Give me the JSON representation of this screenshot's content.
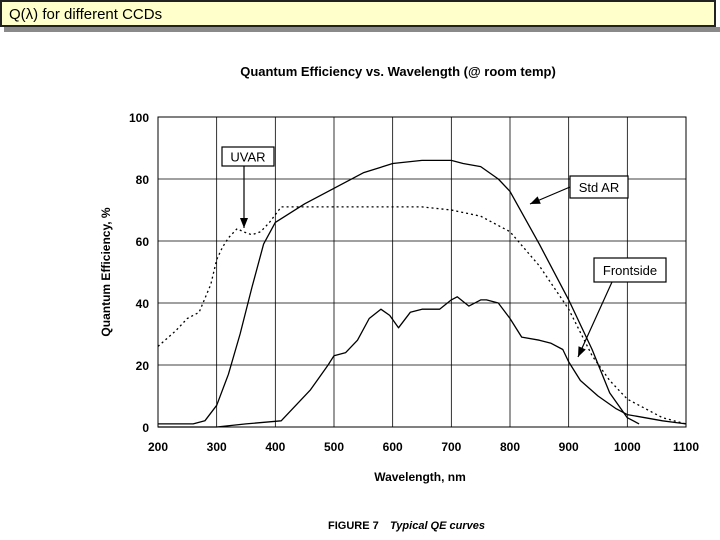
{
  "slide": {
    "title": "Q(λ) for different CCDs"
  },
  "chart_data": {
    "type": "line",
    "title": "Quantum Efficiency vs. Wavelength (@ room temp)",
    "xlabel": "Wavelength, nm",
    "ylabel": "Quantum Efficiency, %",
    "caption_label": "FIGURE 7",
    "caption_text": "Typical QE curves",
    "xlim": [
      200,
      1100
    ],
    "ylim": [
      0,
      100
    ],
    "x_ticks": [
      "200",
      "300",
      "400",
      "500",
      "600",
      "700",
      "800",
      "900",
      "1000",
      "1100"
    ],
    "y_ticks": [
      "0",
      "20",
      "40",
      "60",
      "80",
      "100"
    ],
    "grid": true,
    "series": [
      {
        "name": "UVAR",
        "style": "dotted",
        "x": [
          200,
          230,
          250,
          270,
          290,
          300,
          310,
          320,
          335,
          345,
          360,
          375,
          390,
          410,
          450,
          500,
          550,
          600,
          650,
          700,
          750,
          800,
          850,
          900,
          940,
          970,
          1000,
          1030,
          1060,
          1090,
          1100
        ],
        "y": [
          26,
          31,
          35,
          37,
          46,
          54,
          58,
          61,
          64,
          63,
          62,
          63,
          66,
          71,
          71,
          71,
          71,
          71,
          71,
          70,
          68,
          63,
          52,
          38,
          23,
          15,
          9,
          6,
          3,
          1.5,
          1
        ]
      },
      {
        "name": "Std AR",
        "style": "solid",
        "x": [
          200,
          260,
          280,
          300,
          320,
          340,
          360,
          380,
          400,
          450,
          500,
          550,
          600,
          650,
          700,
          720,
          750,
          780,
          800,
          850,
          900,
          940,
          970,
          1000,
          1020
        ],
        "y": [
          1,
          1,
          2,
          7,
          17,
          30,
          45,
          59,
          66,
          72,
          77,
          82,
          85,
          86,
          86,
          85,
          84,
          80,
          76,
          59,
          41,
          25,
          11,
          3,
          1
        ]
      },
      {
        "name": "Frontside",
        "style": "solid",
        "x": [
          200,
          300,
          350,
          410,
          430,
          460,
          490,
          500,
          520,
          540,
          560,
          580,
          595,
          610,
          630,
          650,
          680,
          700,
          710,
          730,
          750,
          760,
          780,
          800,
          820,
          850,
          870,
          890,
          900,
          920,
          950,
          980,
          1000,
          1030,
          1060,
          1080,
          1100
        ],
        "y": [
          0,
          0,
          1,
          2,
          6,
          12,
          20,
          23,
          24,
          28,
          35,
          38,
          36,
          32,
          37,
          38,
          38,
          41,
          42,
          39,
          41,
          41,
          40,
          35,
          29,
          28,
          27,
          25,
          21,
          15,
          10,
          6,
          4,
          3,
          2,
          1.5,
          1
        ]
      }
    ],
    "annotations": [
      "UVAR",
      "Std AR",
      "Frontside"
    ]
  }
}
